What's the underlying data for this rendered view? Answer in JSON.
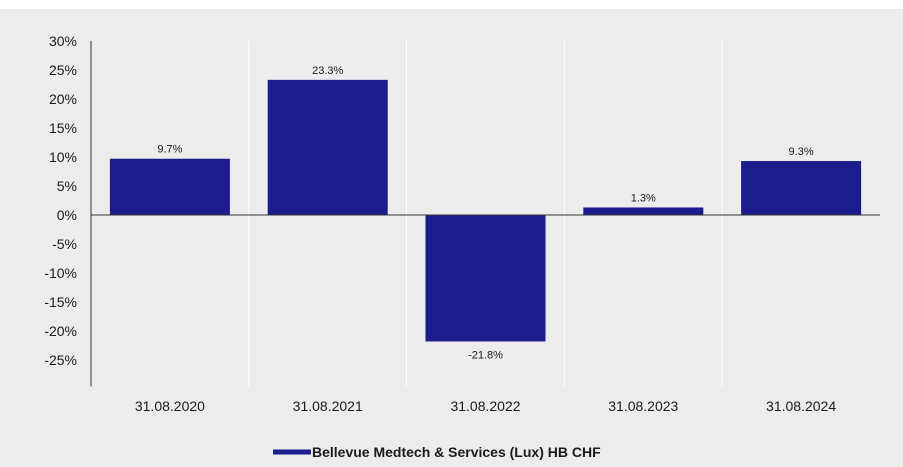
{
  "colors": {
    "bar": "#1c1c8c",
    "background": "#ececec",
    "gridline": "#ffffff",
    "axis": "#333333",
    "text": "#1a1a1a"
  },
  "chart_data": {
    "type": "bar",
    "categories": [
      "31.08.2020",
      "31.08.2021",
      "31.08.2022",
      "31.08.2023",
      "31.08.2024"
    ],
    "values": [
      9.7,
      23.3,
      -21.8,
      1.3,
      9.3
    ],
    "data_labels": [
      "9.7%",
      "23.3%",
      "-21.8%",
      "1.3%",
      "9.3%"
    ],
    "y_ticks": [
      30,
      25,
      20,
      15,
      10,
      5,
      0,
      -5,
      -10,
      -15,
      -20,
      -25
    ],
    "y_tick_labels": [
      "30%",
      "25%",
      "20%",
      "15%",
      "10%",
      "5%",
      "0%",
      "-5%",
      "-10%",
      "-15%",
      "-20%",
      "-25%"
    ],
    "ylim": [
      -28,
      30
    ],
    "grid": "vertical",
    "series": [
      {
        "name": "Bellevue Medtech & Services (Lux) HB CHF",
        "values": [
          9.7,
          23.3,
          -21.8,
          1.3,
          9.3
        ]
      }
    ],
    "legend_position": "bottom-center",
    "title": "",
    "xlabel": "",
    "ylabel": ""
  }
}
